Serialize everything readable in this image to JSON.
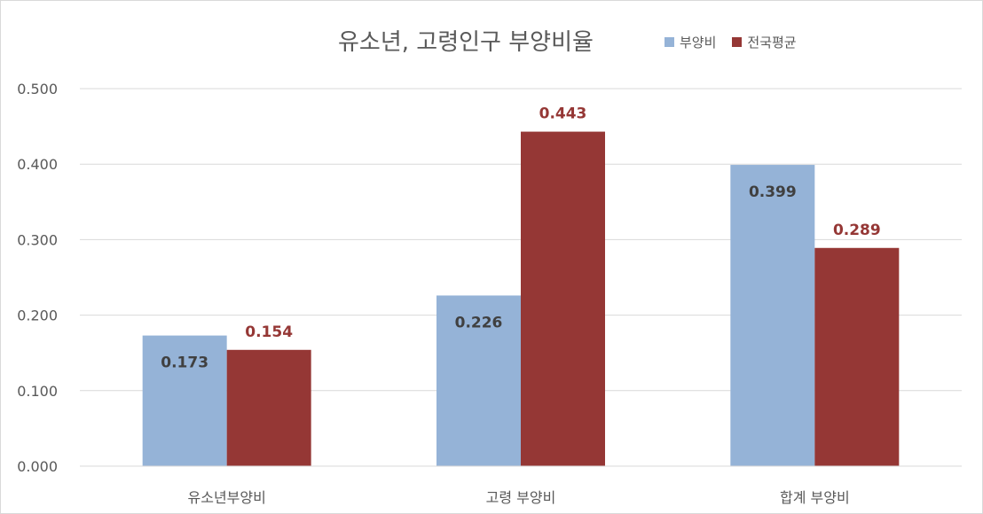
{
  "chart_data": {
    "type": "bar",
    "title": "유소년, 고령인구 부양비율",
    "categories": [
      "유소년부양비",
      "고령 부양비",
      "합계 부양비"
    ],
    "series": [
      {
        "name": "부양비",
        "values": [
          0.173,
          0.226,
          0.399
        ],
        "labels": [
          "0.173",
          "0.226",
          "0.399"
        ],
        "color": "#95b3d7",
        "label_color": "#404040",
        "label_position": "inside-top"
      },
      {
        "name": "전국평균",
        "values": [
          0.154,
          0.443,
          0.289
        ],
        "labels": [
          "0.154",
          "0.443",
          "0.289"
        ],
        "color": "#953735",
        "label_color": "#953735",
        "label_position": "above"
      }
    ],
    "ylim": [
      0,
      0.5
    ],
    "yticks": [
      0,
      0.1,
      0.2,
      0.3,
      0.4,
      0.5
    ],
    "ytick_labels": [
      "0.000",
      "0.100",
      "0.200",
      "0.300",
      "0.400",
      "0.500"
    ],
    "grid": true,
    "legend_position": "top-right",
    "xlabel": "",
    "ylabel": ""
  }
}
